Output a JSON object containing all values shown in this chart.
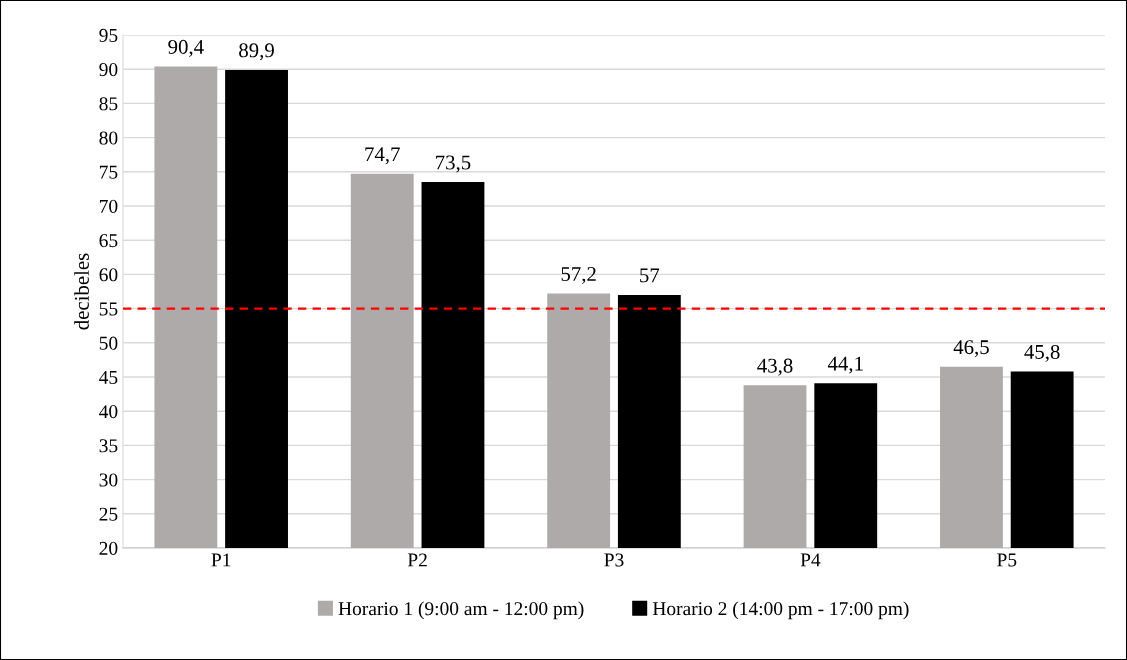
{
  "chart_data": {
    "type": "bar",
    "ylabel": "decibeles",
    "categories": [
      "P1",
      "P2",
      "P3",
      "P4",
      "P5"
    ],
    "series": [
      {
        "name": "Horario 1 (9:00 am - 12:00 pm)",
        "color": "#aeaaaa",
        "values": [
          90.4,
          74.7,
          57.2,
          43.8,
          46.5
        ],
        "value_labels": [
          "90,4",
          "74,7",
          "57,2",
          "43,8",
          "46,5"
        ]
      },
      {
        "name": "Horario 2 (14:00 pm - 17:00 pm)",
        "color": "#000000",
        "values": [
          89.9,
          73.5,
          57,
          44.1,
          45.8
        ],
        "value_labels": [
          "89,9",
          "73,5",
          "57",
          "44,1",
          "45,8"
        ]
      }
    ],
    "ylim": [
      20,
      95
    ],
    "yticks": [
      20,
      25,
      30,
      35,
      40,
      45,
      50,
      55,
      60,
      65,
      70,
      75,
      80,
      85,
      90,
      95
    ],
    "grid": "y",
    "legend": "bottom",
    "ref_lines": [
      {
        "axis": "y",
        "value": 55,
        "color": "#ff0000",
        "line_style": "dashed"
      }
    ]
  }
}
